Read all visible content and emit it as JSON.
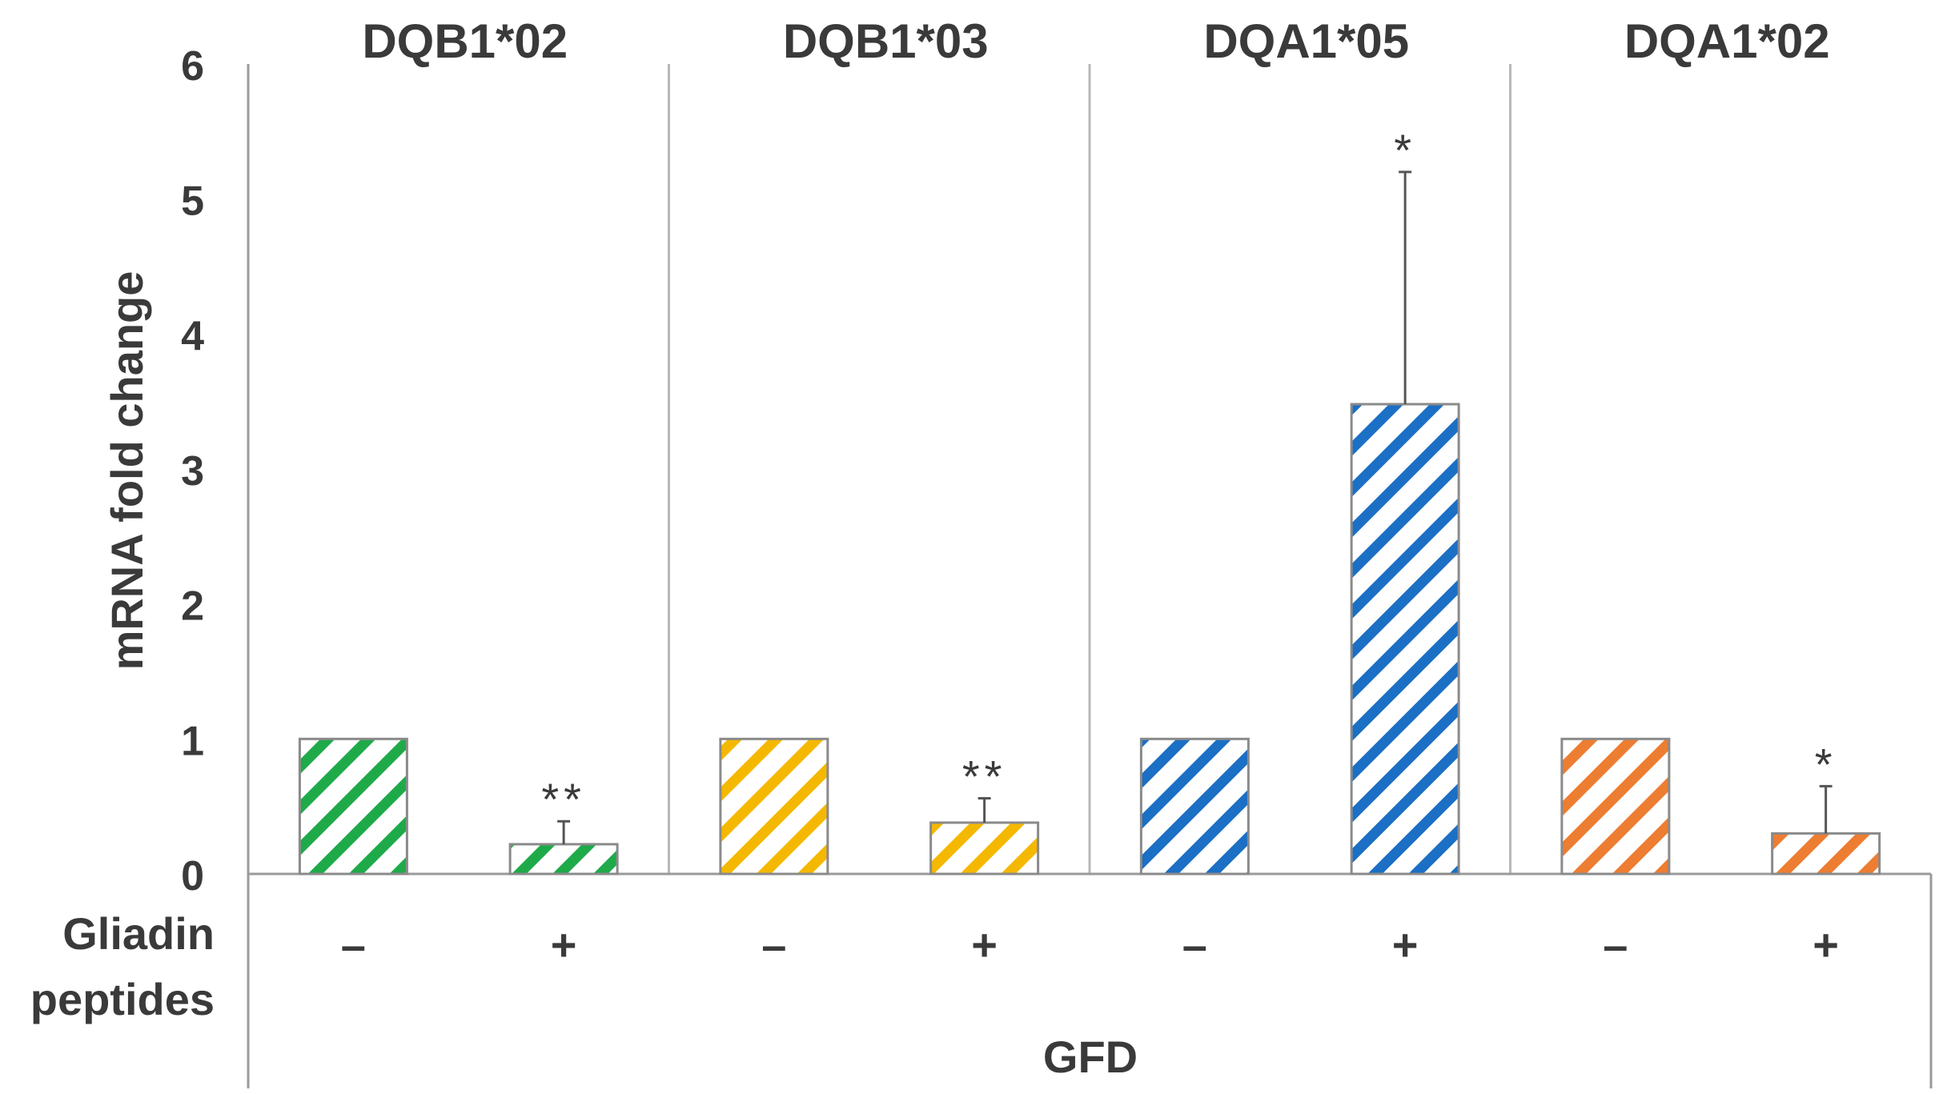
{
  "chart_data": {
    "type": "bar",
    "ylabel": "mRNA fold change",
    "ylim": [
      0,
      6
    ],
    "yticks": [
      "0",
      "1",
      "2",
      "3",
      "4",
      "5",
      "6"
    ],
    "grid": false,
    "row_label_line1": "Gliadin",
    "row_label_line2": "peptides",
    "group_label": "GFD",
    "groups": [
      {
        "name": "DQB1*02",
        "color": "#1faa4a",
        "bars": [
          {
            "treatment": "–",
            "value": 1.0,
            "error": null,
            "sig": ""
          },
          {
            "treatment": "+",
            "value": 0.22,
            "error": 0.17,
            "sig": "**"
          }
        ]
      },
      {
        "name": "DQB1*03",
        "color": "#f5b800",
        "bars": [
          {
            "treatment": "–",
            "value": 1.0,
            "error": null,
            "sig": ""
          },
          {
            "treatment": "+",
            "value": 0.38,
            "error": 0.18,
            "sig": "**"
          }
        ]
      },
      {
        "name": "DQA1*05",
        "color": "#1b6fc4",
        "bars": [
          {
            "treatment": "–",
            "value": 1.0,
            "error": null,
            "sig": ""
          },
          {
            "treatment": "+",
            "value": 3.48,
            "error": 1.72,
            "sig": "*"
          }
        ]
      },
      {
        "name": "DQA1*02",
        "color": "#ed7d31",
        "bars": [
          {
            "treatment": "–",
            "value": 1.0,
            "error": null,
            "sig": ""
          },
          {
            "treatment": "+",
            "value": 0.3,
            "error": 0.35,
            "sig": "*"
          }
        ]
      }
    ]
  }
}
